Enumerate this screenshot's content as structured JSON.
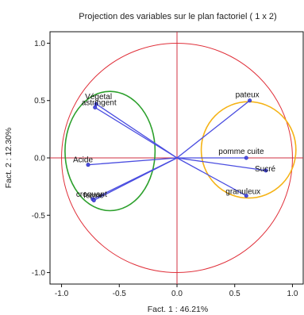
{
  "chart_data": {
    "type": "scatter",
    "title": "Projection des variables sur le plan factoriel ( 1 x  2)",
    "xlabel": "Fact. 1  : 46.21%",
    "ylabel": "Fact. 2  : 12.30%",
    "xlim": [
      -1.1,
      1.1
    ],
    "ylim": [
      -1.1,
      1.1
    ],
    "xticks": [
      "-1.0",
      "-0.5",
      "0.0",
      "0.5",
      "1.0"
    ],
    "yticks": [
      "1.0",
      "0.5",
      "0.0",
      "-0.5",
      "-1.0"
    ],
    "grid": false,
    "points": [
      {
        "label": "Végetal",
        "x": -0.7,
        "y": 0.47
      },
      {
        "label": "astringent",
        "x": -0.71,
        "y": 0.44
      },
      {
        "label": "Acide",
        "x": -0.77,
        "y": -0.06
      },
      {
        "label": "croquant",
        "x": -0.73,
        "y": -0.36
      },
      {
        "label": "ferme",
        "x": -0.72,
        "y": -0.37
      },
      {
        "label": "pateux",
        "x": 0.63,
        "y": 0.5
      },
      {
        "label": "pomme cuite",
        "x": 0.6,
        "y": 0.0
      },
      {
        "label": "Sucré",
        "x": 0.77,
        "y": -0.11
      },
      {
        "label": "granuleux",
        "x": 0.6,
        "y": -0.33
      }
    ],
    "circles": [
      {
        "name": "unit-circle",
        "cx": 0.0,
        "cy": 0.0,
        "rx": 1.0,
        "ry": 1.0,
        "color": "#e0303a"
      },
      {
        "name": "left-group",
        "cx": -0.58,
        "cy": 0.06,
        "rx": 0.39,
        "ry": 0.52,
        "color": "#2ca02c"
      },
      {
        "name": "right-group",
        "cx": 0.62,
        "cy": 0.07,
        "rx": 0.41,
        "ry": 0.42,
        "color": "#f5b316"
      }
    ],
    "colors": {
      "vectors": "#4a4de0",
      "axes": "#d03040",
      "frame": "#111111"
    }
  }
}
